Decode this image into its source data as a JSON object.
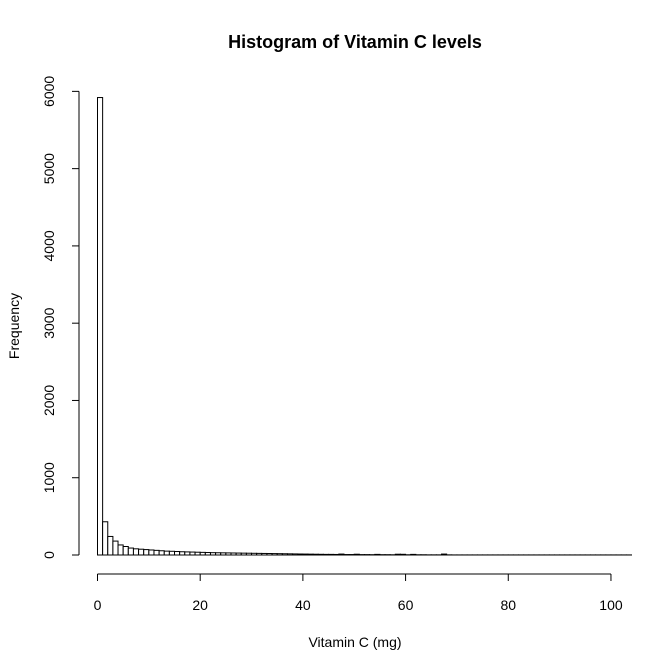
{
  "chart_data": {
    "type": "bar",
    "title": "Histogram of Vitamin C levels",
    "xlabel": "Vitamin C (mg)",
    "ylabel": "Frequency",
    "xlim": [
      0,
      104
    ],
    "ylim": [
      0,
      6000
    ],
    "x_ticks": [
      0,
      20,
      40,
      60,
      80,
      100
    ],
    "y_ticks": [
      0,
      1000,
      2000,
      3000,
      4000,
      5000,
      6000
    ],
    "bin_width": 1,
    "bin_start": 0,
    "values": [
      5920,
      430,
      240,
      180,
      130,
      110,
      90,
      80,
      75,
      70,
      65,
      60,
      55,
      50,
      48,
      45,
      42,
      40,
      38,
      36,
      34,
      32,
      30,
      29,
      28,
      27,
      26,
      25,
      24,
      23,
      22,
      21,
      20,
      19,
      18,
      17,
      16,
      15,
      14,
      13,
      12,
      11,
      10,
      9,
      8,
      8,
      7,
      12,
      6,
      6,
      10,
      5,
      5,
      4,
      8,
      4,
      4,
      3,
      10,
      9,
      3,
      8,
      3,
      3,
      2,
      2,
      2,
      12,
      2,
      1,
      1,
      1,
      1,
      1,
      1,
      1,
      1,
      1,
      1,
      1,
      1,
      1,
      1,
      1,
      1,
      1,
      1,
      1,
      1,
      1,
      1,
      1,
      1,
      1,
      1,
      1,
      1,
      1,
      1,
      1,
      1,
      1,
      1,
      1
    ]
  }
}
